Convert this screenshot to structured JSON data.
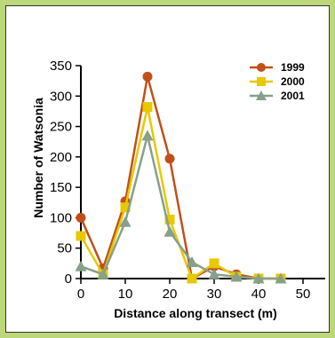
{
  "chart_data": {
    "type": "line",
    "xlabel": "Distance along transect (m)",
    "ylabel": "Number of Watsonia",
    "xlim": [
      0,
      55
    ],
    "ylim": [
      0,
      350
    ],
    "x_ticks": [
      0,
      10,
      20,
      30,
      40,
      50
    ],
    "y_ticks": [
      0,
      50,
      100,
      150,
      200,
      250,
      300,
      350
    ],
    "legend_position": "top-right",
    "grid": false,
    "series": [
      {
        "name": "1999",
        "color": "#c0501a",
        "marker": "circle",
        "x": [
          0,
          5,
          10,
          15,
          20,
          25,
          30,
          35,
          40,
          45
        ],
        "y": [
          100,
          17,
          127,
          332,
          197,
          0,
          20,
          7,
          0,
          0
        ]
      },
      {
        "name": "2000",
        "color": "#e8c800",
        "marker": "square",
        "x": [
          0,
          5,
          10,
          15,
          20,
          25,
          30,
          35,
          40,
          45
        ],
        "y": [
          70,
          7,
          117,
          282,
          97,
          0,
          25,
          3,
          0,
          0
        ]
      },
      {
        "name": "2001",
        "color": "#86a08a",
        "marker": "triangle",
        "x": [
          0,
          5,
          10,
          15,
          20,
          25,
          30,
          35,
          40,
          45
        ],
        "y": [
          20,
          7,
          93,
          235,
          77,
          27,
          7,
          3,
          0,
          0
        ]
      }
    ]
  }
}
